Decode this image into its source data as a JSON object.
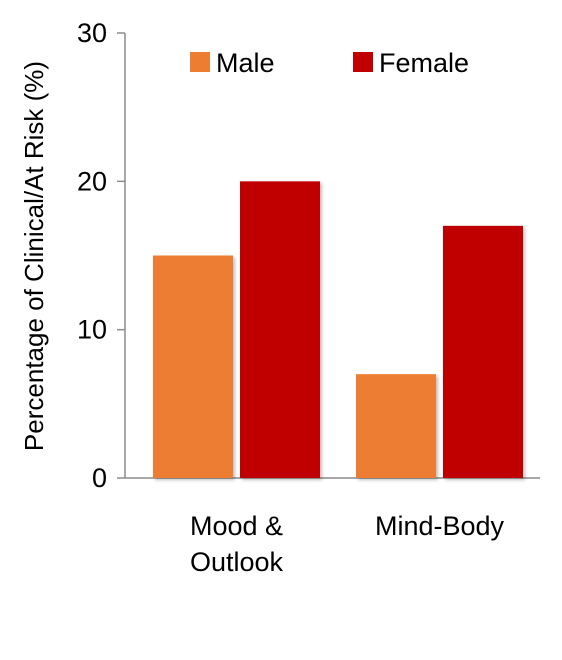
{
  "chart_data": {
    "type": "bar",
    "categories": [
      [
        "Mood &",
        "Outlook"
      ],
      [
        "Mind-Body"
      ]
    ],
    "series": [
      {
        "name": "Male",
        "values": [
          15,
          7
        ],
        "color": "#ED7D31"
      },
      {
        "name": "Female",
        "values": [
          20,
          17
        ],
        "color": "#C00000"
      }
    ],
    "ylabel": "Percentage of Clinical/At Risk (%)",
    "xlabel": "",
    "ylim": [
      0,
      30
    ],
    "yticks": [
      0,
      10,
      20,
      30
    ],
    "legend_position": "top",
    "grid": false
  }
}
